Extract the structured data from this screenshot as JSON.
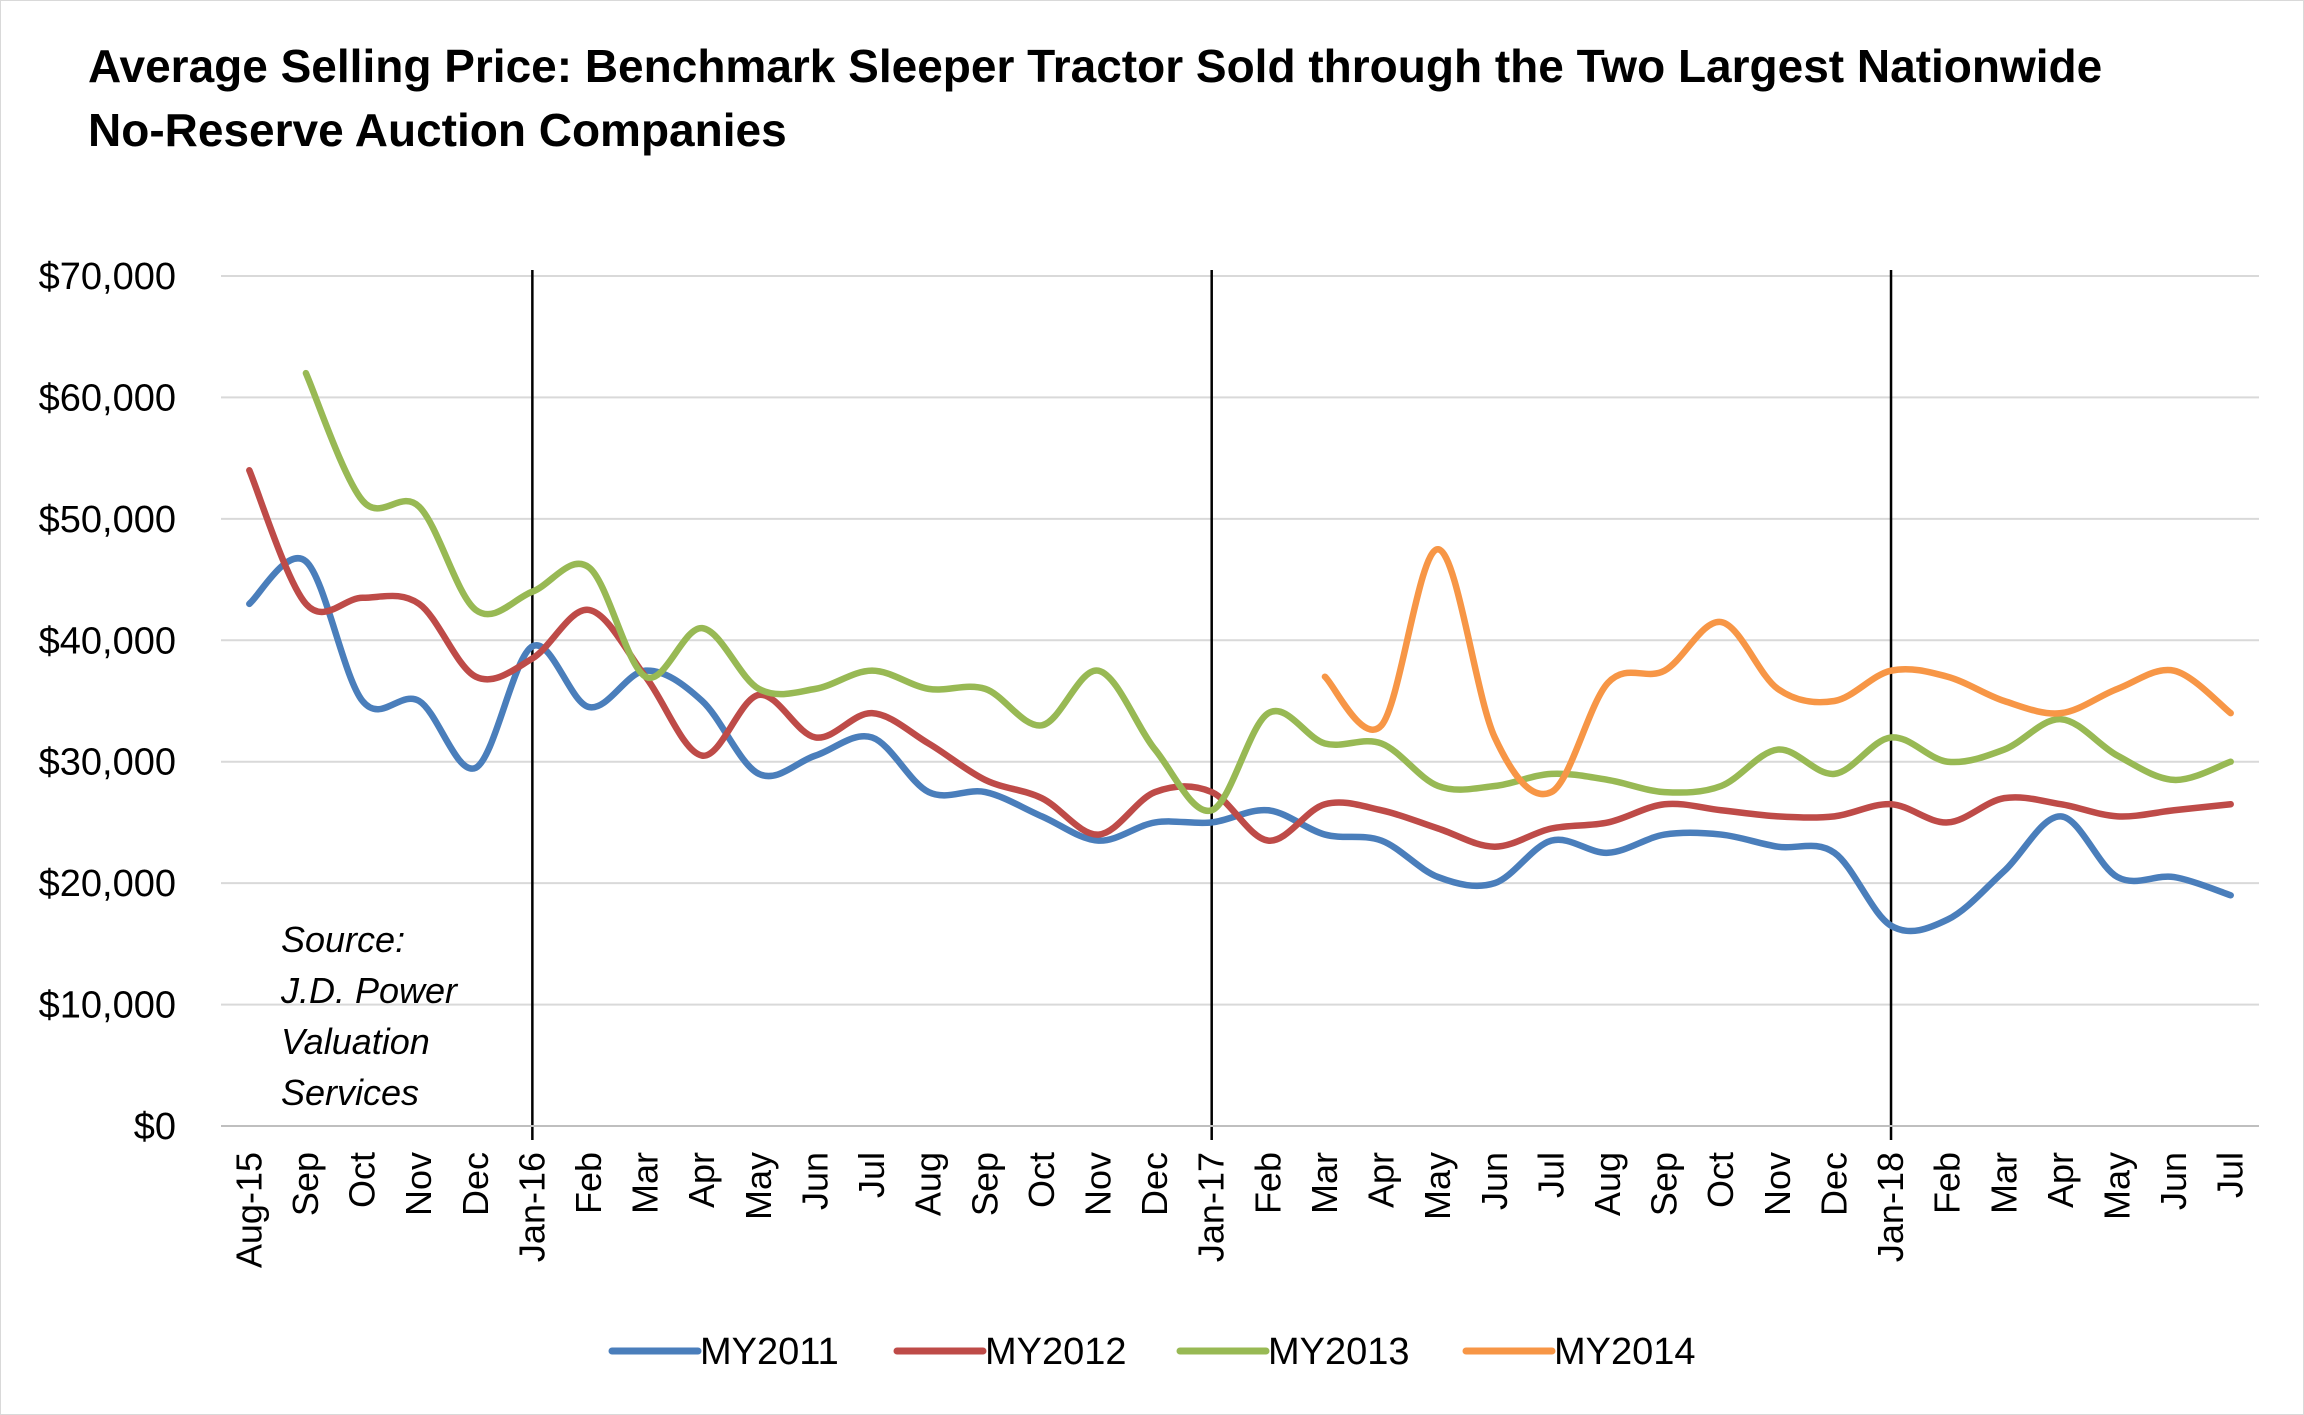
{
  "chart_data": {
    "type": "line",
    "title": "Average Selling Price: Benchmark Sleeper Tractor Sold through the Two Largest Nationwide No-Reserve Auction Companies",
    "xlabel": "",
    "ylabel": "",
    "ylim": [
      0,
      70000
    ],
    "y_ticks": [
      "$0",
      "$10,000",
      "$20,000",
      "$30,000",
      "$40,000",
      "$50,000",
      "$60,000",
      "$70,000"
    ],
    "grid": true,
    "legend_position": "bottom",
    "categories": [
      "Aug-15",
      "Sep",
      "Oct",
      "Nov",
      "Dec",
      "Jan-16",
      "Feb",
      "Mar",
      "Apr",
      "May",
      "Jun",
      "Jul",
      "Aug",
      "Sep",
      "Oct",
      "Nov",
      "Dec",
      "Jan-17",
      "Feb",
      "Mar",
      "Apr",
      "May",
      "Jun",
      "Jul",
      "Aug",
      "Sep",
      "Oct",
      "Nov",
      "Dec",
      "Jan-18",
      "Feb",
      "Mar",
      "Apr",
      "May",
      "Jun",
      "Jul"
    ],
    "year_dividers": [
      "Jan-16",
      "Jan-17",
      "Jan-18"
    ],
    "series": [
      {
        "name": "MY2011",
        "color": "#4a7ebb",
        "values": [
          43000,
          46500,
          35000,
          35000,
          29500,
          39500,
          34500,
          37500,
          35000,
          29000,
          30500,
          32000,
          27500,
          27500,
          25500,
          23500,
          25000,
          25000,
          26000,
          24000,
          23500,
          20500,
          20000,
          23500,
          22500,
          24000,
          24000,
          23000,
          22500,
          16500,
          17000,
          21000,
          25500,
          20500,
          20500,
          19000
        ]
      },
      {
        "name": "MY2012",
        "color": "#be4b48",
        "values": [
          54000,
          43000,
          43500,
          43000,
          37000,
          38500,
          42500,
          37000,
          30500,
          35500,
          32000,
          34000,
          31500,
          28500,
          27000,
          24000,
          27500,
          27500,
          23500,
          26500,
          26000,
          24500,
          23000,
          24500,
          25000,
          26500,
          26000,
          25500,
          25500,
          26500,
          25000,
          27000,
          26500,
          25500,
          26000,
          26500
        ]
      },
      {
        "name": "MY2013",
        "color": "#98b954",
        "values": [
          null,
          62000,
          51500,
          51000,
          42500,
          44000,
          46000,
          37000,
          41000,
          36000,
          36000,
          37500,
          36000,
          36000,
          33000,
          37500,
          31000,
          26000,
          34000,
          31500,
          31500,
          28000,
          28000,
          29000,
          28500,
          27500,
          28000,
          31000,
          29000,
          32000,
          30000,
          31000,
          33500,
          30500,
          28500,
          30000
        ]
      },
      {
        "name": "MY2014",
        "color": "#f79646",
        "values": [
          null,
          null,
          null,
          null,
          null,
          null,
          null,
          null,
          null,
          null,
          null,
          null,
          null,
          null,
          null,
          null,
          null,
          null,
          null,
          37000,
          33000,
          47500,
          32000,
          27500,
          36500,
          37500,
          41500,
          36000,
          35000,
          37500,
          37000,
          35000,
          34000,
          36000,
          37500,
          34000
        ]
      }
    ],
    "annotation": [
      "Source:",
      "J.D. Power",
      "Valuation",
      "Services"
    ]
  }
}
